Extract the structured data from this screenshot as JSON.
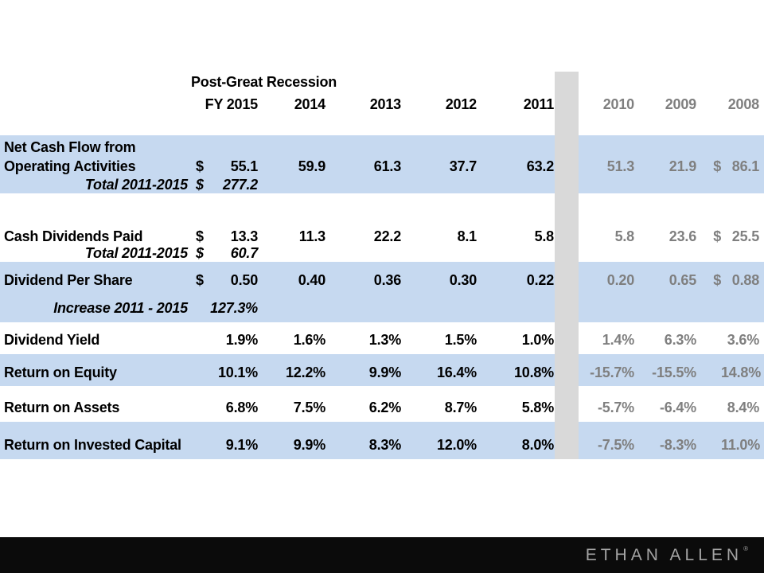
{
  "colors": {
    "band_blue": "#c6d9f0",
    "divider_gray": "#d9d9d9",
    "muted_text": "#7f7f7f",
    "footer_bg": "#0b0b0b",
    "brand_text": "#a3a3a3"
  },
  "chart_data": {
    "type": "table",
    "title": "Post-Great Recession",
    "header": {
      "fy_label": "FY 2015",
      "years": [
        "2014",
        "2013",
        "2012",
        "2011"
      ],
      "gray_years": [
        "2010",
        "2009",
        "2008"
      ]
    },
    "rows": [
      {
        "name": "Net Cash Flow from Operating Activities",
        "label_lines": [
          "Net Cash Flow from",
          "Operating Activities"
        ],
        "dollar": "$",
        "values": [
          "55.1",
          "59.9",
          "61.3",
          "37.7",
          "63.2"
        ],
        "gray_values": [
          "51.3",
          "21.9",
          "86.1"
        ],
        "gray_dollar": "$",
        "sub": {
          "label": "Total 2011-2015",
          "dollar": "$",
          "value": "277.2"
        }
      },
      {
        "name": "Cash Dividends Paid",
        "label_lines": [
          "Cash Dividends Paid"
        ],
        "dollar": "$",
        "values": [
          "13.3",
          "11.3",
          "22.2",
          "8.1",
          "5.8"
        ],
        "gray_values": [
          "5.8",
          "23.6",
          "25.5"
        ],
        "gray_dollar": "$",
        "sub": {
          "label": "Total 2011-2015",
          "dollar": "$",
          "value": "60.7"
        }
      },
      {
        "name": "Dividend Per Share",
        "label_lines": [
          "Dividend Per Share"
        ],
        "dollar": "$",
        "values": [
          "0.50",
          "0.40",
          "0.36",
          "0.30",
          "0.22"
        ],
        "gray_values": [
          "0.20",
          "0.65",
          "0.88"
        ],
        "gray_dollar": "$",
        "sub": {
          "label": "Increase 2011 - 2015",
          "value": "127.3%"
        }
      },
      {
        "name": "Dividend Yield",
        "label_lines": [
          "Dividend Yield"
        ],
        "values": [
          "1.9%",
          "1.6%",
          "1.3%",
          "1.5%",
          "1.0%"
        ],
        "gray_values": [
          "1.4%",
          "6.3%",
          "3.6%"
        ]
      },
      {
        "name": "Return on Equity",
        "label_lines": [
          "Return on Equity"
        ],
        "values": [
          "10.1%",
          "12.2%",
          "9.9%",
          "16.4%",
          "10.8%"
        ],
        "gray_values": [
          "-15.7%",
          "-15.5%",
          "14.8%"
        ]
      },
      {
        "name": "Return on Assets",
        "label_lines": [
          "Return on Assets"
        ],
        "values": [
          "6.8%",
          "7.5%",
          "6.2%",
          "8.7%",
          "5.8%"
        ],
        "gray_values": [
          "-5.7%",
          "-6.4%",
          "8.4%"
        ]
      },
      {
        "name": "Return on Invested Capital",
        "label_lines": [
          "Return on Invested Capital"
        ],
        "values": [
          "9.1%",
          "9.9%",
          "8.3%",
          "12.0%",
          "8.0%"
        ],
        "gray_values": [
          "-7.5%",
          "-8.3%",
          "11.0%"
        ]
      }
    ]
  },
  "footer": {
    "brand": "ETHAN ALLEN",
    "brand_mark": "®"
  }
}
